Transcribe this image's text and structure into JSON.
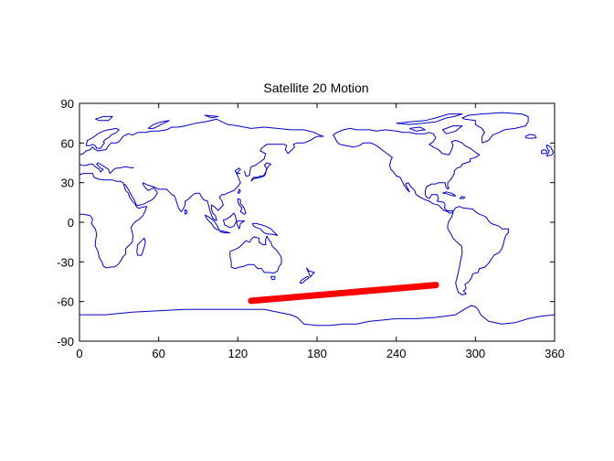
{
  "chart_data": {
    "type": "line",
    "title": "Satellite 20 Motion",
    "xlabel": "",
    "ylabel": "",
    "xlim": [
      0,
      360
    ],
    "ylim": [
      -90,
      90
    ],
    "x_ticks": [
      0,
      60,
      120,
      180,
      240,
      300,
      360
    ],
    "y_ticks": [
      -90,
      -60,
      -30,
      0,
      30,
      60,
      90
    ],
    "grid": false,
    "background_map": "world coastlines",
    "coast_color": "#0000c8",
    "series": [
      {
        "x": [
          130,
          270
        ],
        "y": [
          -59.5,
          -47.5
        ],
        "color": "#ff0000"
      }
    ]
  }
}
